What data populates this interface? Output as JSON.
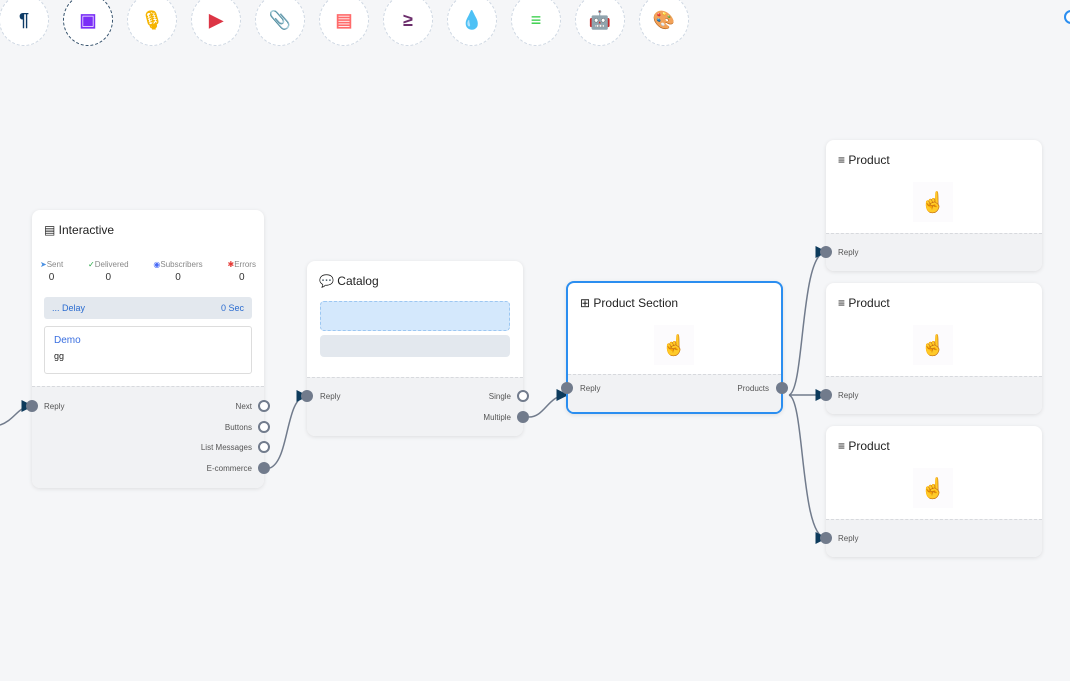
{
  "toolbar": [
    {
      "icon": "paragraph-icon",
      "glyph": "¶",
      "color": "#0d3b66"
    },
    {
      "icon": "image-icon",
      "glyph": "▣",
      "color": "#7b2ff7"
    },
    {
      "icon": "microphone-icon",
      "glyph": "🎙",
      "color": "#f5b400"
    },
    {
      "icon": "youtube-icon",
      "glyph": "▶",
      "color": "#dc3545"
    },
    {
      "icon": "paperclip-icon",
      "glyph": "📎",
      "color": "#1e9e55"
    },
    {
      "icon": "newspaper-icon",
      "glyph": "▤",
      "color": "#ff6b6b"
    },
    {
      "icon": "greater-equal-icon",
      "glyph": "≥",
      "color": "#6b2d6b"
    },
    {
      "icon": "droplet-icon",
      "glyph": "💧",
      "color": "#c8102e"
    },
    {
      "icon": "stack-overflow-icon",
      "glyph": "≡",
      "color": "#2ecc40"
    },
    {
      "icon": "robot-icon",
      "glyph": "🤖",
      "color": "#1a1aff"
    },
    {
      "icon": "palette-icon",
      "glyph": "🎨",
      "color": "#22cc22"
    }
  ],
  "interactive": {
    "title": "Interactive",
    "stats": [
      {
        "label": "Sent",
        "value": "0"
      },
      {
        "label": "Delivered",
        "value": "0"
      },
      {
        "label": "Subscribers",
        "value": "0"
      },
      {
        "label": "Errors",
        "value": "0"
      }
    ],
    "delay_label": "... Delay",
    "delay_value": "0 Sec",
    "card_title": "Demo",
    "card_text": "gg",
    "reply": "Reply",
    "outputs": [
      "Next",
      "Buttons",
      "List Messages",
      "E-commerce"
    ]
  },
  "catalog": {
    "title": "Catalog",
    "reply": "Reply",
    "outputs": [
      "Single",
      "Multiple"
    ]
  },
  "section": {
    "title": "Product Section",
    "reply": "Reply",
    "output": "Products"
  },
  "products": [
    {
      "title": "Product",
      "reply": "Reply"
    },
    {
      "title": "Product",
      "reply": "Reply"
    },
    {
      "title": "Product",
      "reply": "Reply"
    }
  ],
  "colors": {
    "accent": "#2b8ef0",
    "edge": "#717b8c",
    "arrow": "#0d3b5c"
  }
}
